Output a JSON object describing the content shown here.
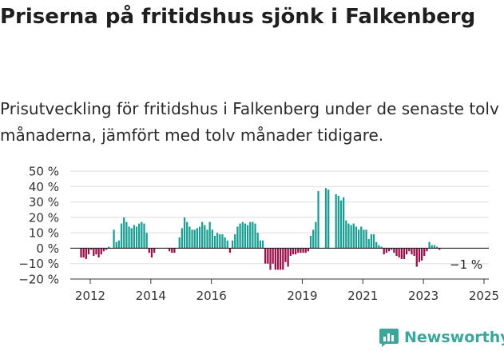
{
  "title": "Priserna på fritidshus sjönk i Falkenberg",
  "subtitle": "Prisutveckling för fritidshus i Falkenberg under de senaste tolv månaderna, jämfört med tolv månader tidigare.",
  "brand": "Newsworthy",
  "colors": {
    "positive": "#1a9e93",
    "negative": "#99104a",
    "brand": "#3aa79a",
    "grid": "#dddddd"
  },
  "chart_data": {
    "type": "bar",
    "ylim": [
      -20,
      50
    ],
    "yticks": [
      50,
      40,
      30,
      20,
      10,
      0,
      -10,
      -20
    ],
    "ytick_labels": [
      "50 %",
      "40 %",
      "30 %",
      "20 %",
      "10 %",
      "0 %",
      "−10 %",
      "−20 %"
    ],
    "xticks": [
      2012,
      2014,
      2016,
      2019,
      2021,
      2023,
      2025
    ],
    "x_start": "2011-09",
    "annotation": "−1 %",
    "values": [
      -6,
      -6,
      -7,
      -4,
      -1,
      -5,
      -4,
      -6,
      -4,
      -2,
      -1,
      1,
      0,
      12,
      4,
      5,
      16,
      20,
      17,
      14,
      13,
      15,
      14,
      16,
      17,
      16,
      10,
      -3,
      -6,
      -3,
      0,
      0,
      0,
      0,
      0,
      -2,
      -3,
      -3,
      0,
      7,
      13,
      20,
      17,
      14,
      12,
      12,
      13,
      14,
      17,
      15,
      12,
      17,
      12,
      8,
      10,
      9,
      9,
      7,
      5,
      -3,
      5,
      9,
      14,
      16,
      17,
      16,
      15,
      17,
      17,
      16,
      10,
      5,
      5,
      -10,
      -10,
      -14,
      -10,
      -14,
      -14,
      -14,
      -14,
      -9,
      -12,
      -5,
      -4,
      -4,
      -3,
      -3,
      -3,
      -3,
      -2,
      8,
      12,
      17,
      37,
      0,
      0,
      39,
      38,
      0,
      0,
      35,
      34,
      31,
      33,
      18,
      16,
      15,
      16,
      14,
      12,
      14,
      12,
      12,
      6,
      9,
      9,
      4,
      2,
      1,
      -4,
      -3,
      -2,
      -1,
      -3,
      -5,
      -6,
      -7,
      -7,
      -4,
      -2,
      -4,
      -5,
      -12,
      -9,
      -8,
      -5,
      -2,
      4,
      2,
      2,
      1,
      -1
    ]
  }
}
